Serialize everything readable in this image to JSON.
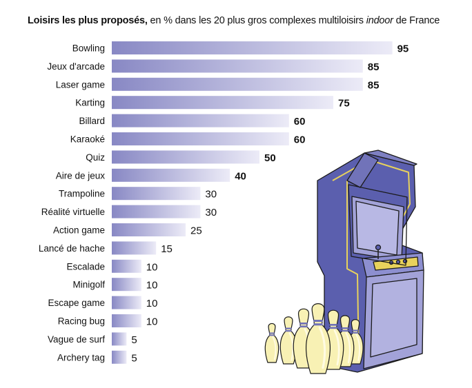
{
  "title": {
    "bold": "Loisirs les plus proposés,",
    "pre": " en % dans les 20 plus gros complexes multiloisirs ",
    "italic": "indoor",
    "post": " de France"
  },
  "chart_data": {
    "type": "bar",
    "orientation": "horizontal",
    "categories": [
      "Bowling",
      "Jeux d'arcade",
      "Laser game",
      "Karting",
      "Billard",
      "Karaoké",
      "Quiz",
      "Aire de jeux",
      "Trampoline",
      "Réalité virtuelle",
      "Action game",
      "Lancé de hache",
      "Escalade",
      "Minigolf",
      "Escape game",
      "Racing bug",
      "Vague de surf",
      "Archery tag"
    ],
    "values": [
      95,
      85,
      85,
      75,
      60,
      60,
      50,
      40,
      30,
      30,
      25,
      15,
      10,
      10,
      10,
      10,
      5,
      5
    ],
    "value_labels_bold_threshold": 40,
    "xlim": [
      0,
      100
    ],
    "grid": false,
    "legend": "none"
  },
  "colors": {
    "bar_start": "#8888c4",
    "bar_end": "#ecebf7",
    "cabinet_side": "#5b5fae",
    "cabinet_front": "#a2a2d8",
    "trim": "#e8d25c",
    "pin": "#f8f1b4",
    "pin_stripe": "#7072b8"
  },
  "illustration": {
    "cabinet_icon": "arcade-cabinet-icon",
    "pins_icon": "bowling-pins-icon"
  }
}
